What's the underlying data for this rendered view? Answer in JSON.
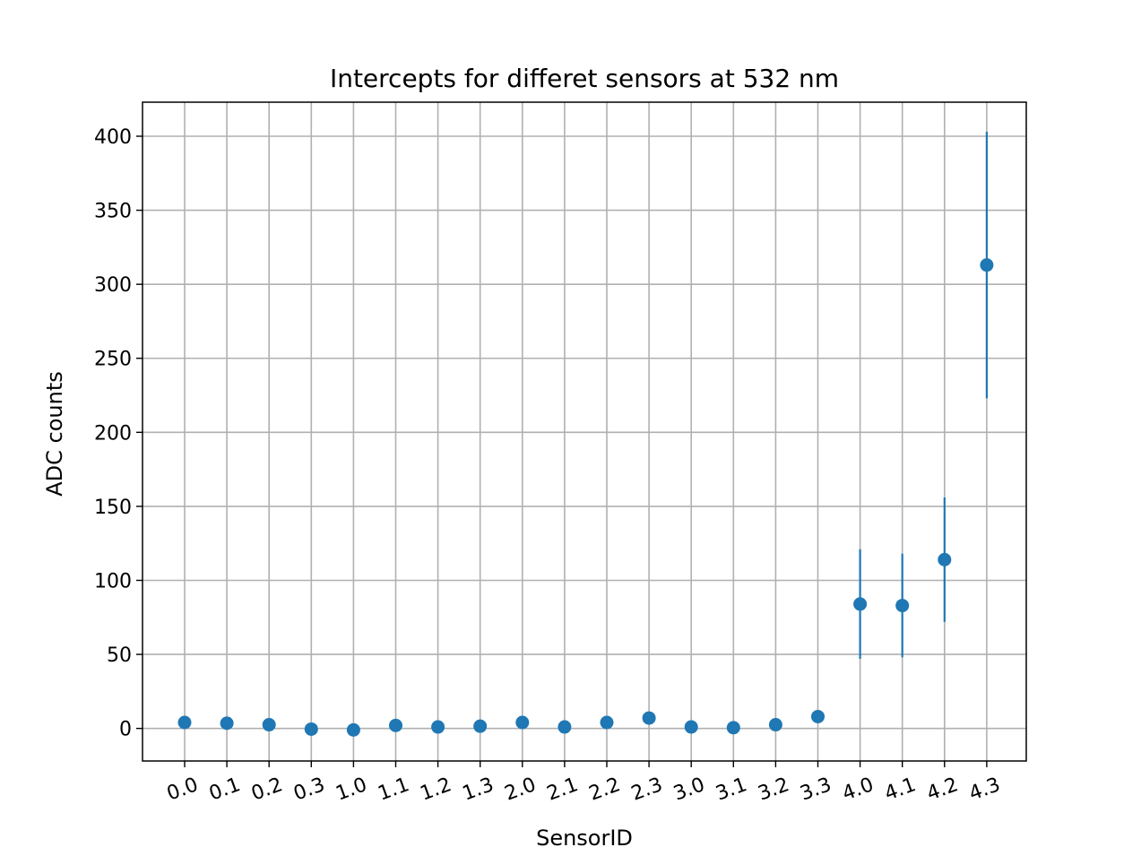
{
  "chart_data": {
    "type": "scatter",
    "title": "Intercepts for differet sensors at 532 nm",
    "xlabel": "SensorID",
    "ylabel": "ADC counts",
    "categories": [
      "0.0",
      "0.1",
      "0.2",
      "0.3",
      "1.0",
      "1.1",
      "1.2",
      "1.3",
      "2.0",
      "2.1",
      "2.2",
      "2.3",
      "3.0",
      "3.1",
      "3.2",
      "3.3",
      "4.0",
      "4.1",
      "4.2",
      "4.3"
    ],
    "values": [
      4,
      3.5,
      2.5,
      -0.5,
      -1,
      2,
      1,
      1.5,
      4,
      1,
      4,
      7,
      1,
      0.5,
      2.5,
      8,
      84,
      83,
      114,
      313
    ],
    "errors": [
      0,
      0,
      0,
      0,
      0,
      0,
      0,
      0,
      0,
      0,
      0,
      0,
      0,
      0,
      0,
      0,
      37,
      35,
      42,
      90
    ],
    "ylim": [
      -22,
      423
    ],
    "yticks": [
      0,
      50,
      100,
      150,
      200,
      250,
      300,
      350,
      400
    ],
    "grid": true,
    "xtick_rotation": 20,
    "color": "#1f77b4"
  }
}
